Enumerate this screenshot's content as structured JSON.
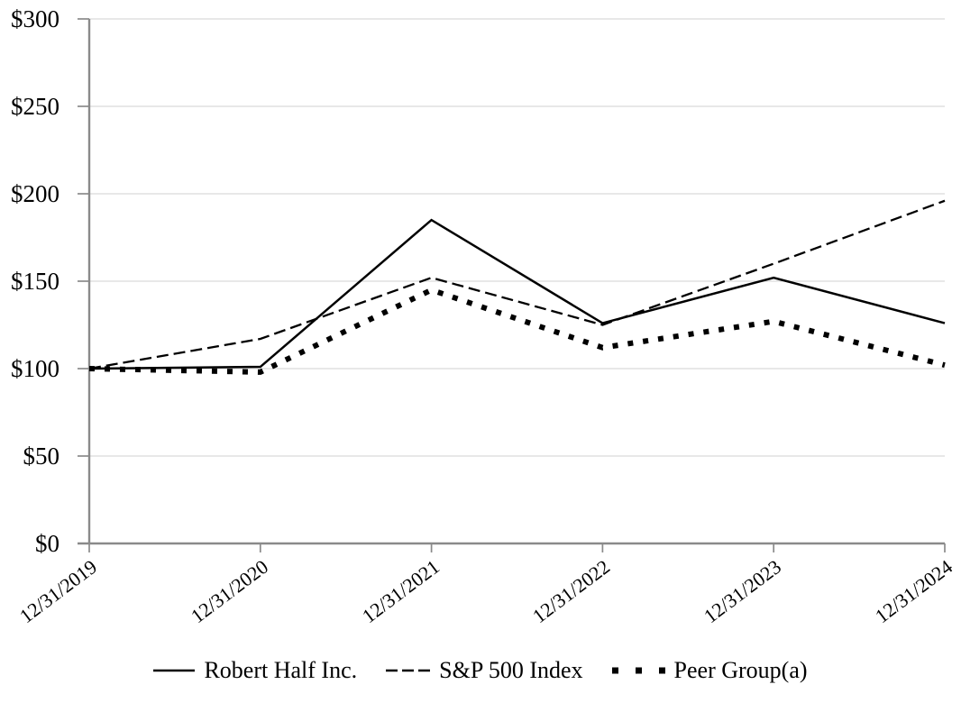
{
  "chart_data": {
    "type": "line",
    "categories": [
      "12/31/2019",
      "12/31/2020",
      "12/31/2021",
      "12/31/2022",
      "12/31/2023",
      "12/31/2024"
    ],
    "series": [
      {
        "name": "Robert Half Inc.",
        "style": "solid",
        "color": "#000000",
        "values": [
          100,
          101,
          185,
          126,
          152,
          126
        ]
      },
      {
        "name": "S&P 500 Index",
        "style": "dashed",
        "color": "#000000",
        "values": [
          100,
          117,
          152,
          125,
          160,
          196
        ]
      },
      {
        "name": "Peer Group(a)",
        "style": "dotted",
        "color": "#000000",
        "values": [
          100,
          98,
          145,
          112,
          127,
          102
        ]
      }
    ],
    "y_tick_labels": [
      "$300",
      "$250",
      "$200",
      "$150",
      "$100",
      "$50",
      "$0"
    ],
    "ylim": [
      0,
      300
    ],
    "y_tick_step": 50,
    "xlabel": "",
    "ylabel": "",
    "grid": true,
    "legend_position": "bottom",
    "colors": {
      "line": "#000000",
      "gridline": "#dadada",
      "axis": "#8a8a8a",
      "text": "#000000",
      "background": "#ffffff"
    }
  }
}
